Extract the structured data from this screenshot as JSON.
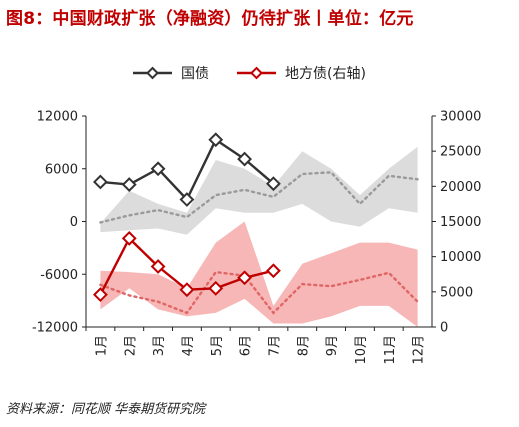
{
  "title": "图8：中国财政扩张（净融资）仍待扩张丨单位：亿元",
  "source": "资料来源：同花顺  华泰期货研究院",
  "chart_data": {
    "type": "line",
    "categories": [
      "1月",
      "2月",
      "3月",
      "4月",
      "5月",
      "6月",
      "7月",
      "8月",
      "9月",
      "10月",
      "11月",
      "12月"
    ],
    "series": [
      {
        "name": "国债",
        "axis": "left",
        "color": "#333333",
        "values": [
          4500,
          4200,
          6000,
          2500,
          9300,
          7100,
          4300,
          null,
          null,
          null,
          null,
          null
        ]
      },
      {
        "name": "地方债(右轴)",
        "axis": "right",
        "color": "#c00000",
        "values": [
          4600,
          12600,
          8600,
          5300,
          5500,
          7000,
          8000,
          null,
          null,
          null,
          null,
          null
        ]
      }
    ],
    "gray_band": {
      "axis": "left",
      "upper": [
        -200,
        3500,
        2000,
        1000,
        7000,
        6000,
        4000,
        8000,
        6000,
        3000,
        6000,
        8500
      ],
      "lower": [
        -1200,
        -1000,
        -800,
        -1500,
        1500,
        1000,
        1000,
        2000,
        0,
        -600,
        1500,
        1000
      ],
      "mean": [
        -100,
        700,
        1300,
        500,
        3000,
        3600,
        2800,
        5400,
        5600,
        2000,
        5200,
        4800
      ]
    },
    "pink_band": {
      "axis": "right",
      "upper": [
        8000,
        7800,
        7500,
        5500,
        12000,
        15000,
        3000,
        9000,
        10500,
        12000,
        12000,
        11000
      ],
      "lower": [
        2500,
        5500,
        2500,
        1500,
        2000,
        4000,
        500,
        500,
        1500,
        3000,
        3000,
        0
      ],
      "mean": [
        6000,
        4500,
        3600,
        2000,
        7800,
        7300,
        2000,
        6100,
        5800,
        6700,
        7700,
        3600
      ]
    },
    "left_axis": {
      "min": -12000,
      "max": 12000,
      "ticks": [
        12000,
        6000,
        0,
        -6000,
        -12000
      ]
    },
    "right_axis": {
      "min": 0,
      "max": 30000,
      "ticks": [
        30000,
        25000,
        20000,
        15000,
        10000,
        5000,
        0
      ]
    },
    "legend": {
      "position": "top"
    },
    "grid": false
  }
}
